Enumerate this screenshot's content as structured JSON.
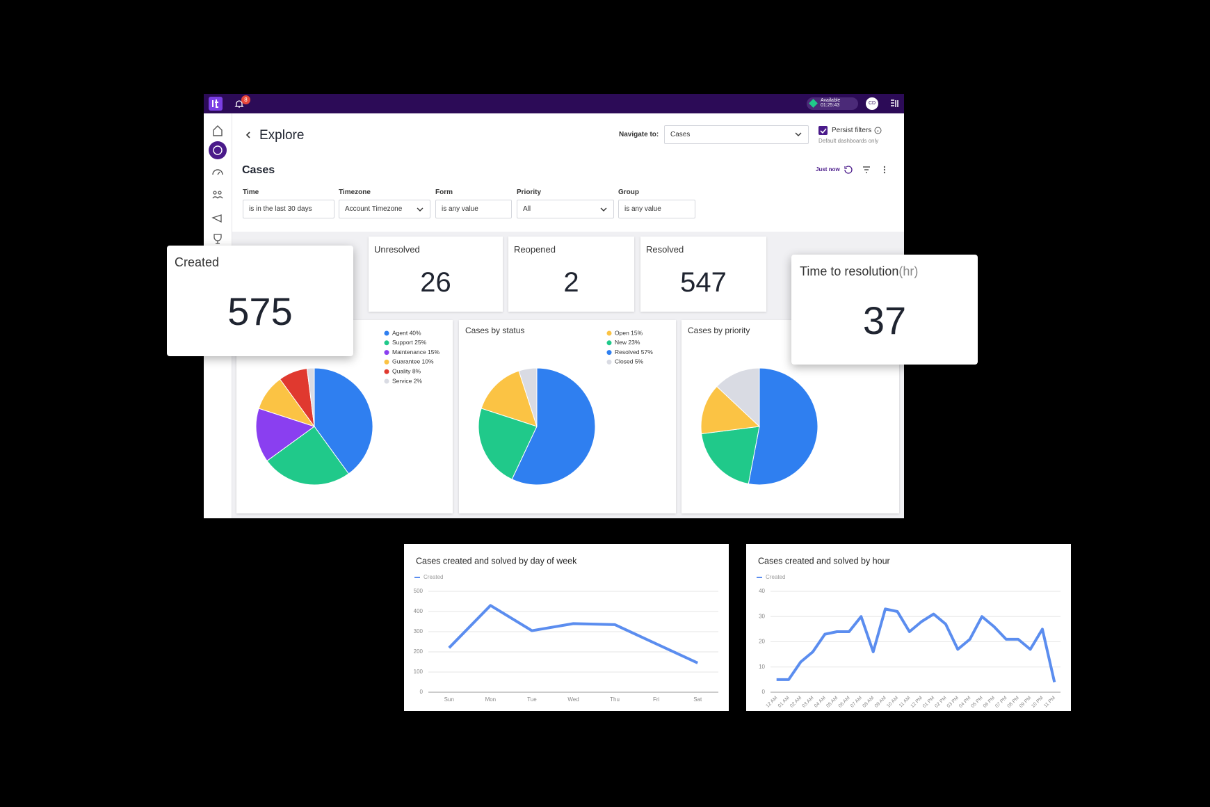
{
  "top_bar": {
    "notification_count": "8",
    "status": "Available",
    "timer": "01:25:43",
    "avatar": "CD"
  },
  "header": {
    "title": "Explore",
    "navigate_label": "Navigate to:",
    "navigate_value": "Cases",
    "persist_label": "Persist filters",
    "persist_note": "Default dashboards only"
  },
  "section": {
    "title": "Cases",
    "refreshed": "Just now"
  },
  "filters": [
    {
      "label": "Time",
      "value": "is in the last 30 days"
    },
    {
      "label": "Timezone",
      "value": "Account Timezone"
    },
    {
      "label": "Form",
      "value": "is any value"
    },
    {
      "label": "Priority",
      "value": "All"
    },
    {
      "label": "Group",
      "value": "is any value"
    }
  ],
  "kpis": [
    {
      "title": "Created",
      "value": 575
    },
    {
      "title": "Unresolved",
      "value": 26
    },
    {
      "title": "Reopened",
      "value": 2
    },
    {
      "title": "Resolved",
      "value": 547
    },
    {
      "title": "Time to resolution",
      "unit": "(hr)",
      "value": 37
    }
  ],
  "pies": [
    {
      "type": "pie",
      "categories": [
        "Agent 40%",
        "Support 25%",
        "Maintenance 15%",
        "Guarantee 10%",
        "Quality 8%",
        "Service 2%"
      ],
      "values": [
        40,
        25,
        15,
        10,
        8,
        2
      ],
      "colors": [
        "#2f7ff0",
        "#20c98a",
        "#8a3ff0",
        "#fbc344",
        "#e0392f",
        "#d9dbe3"
      ]
    },
    {
      "type": "pie",
      "title": "Cases by status",
      "categories": [
        "Open 15%",
        "New 23%",
        "Resolved 57%",
        "Closed 5%"
      ],
      "values": [
        15,
        23,
        57,
        5
      ],
      "colors": [
        "#fbc344",
        "#20c98a",
        "#2f7ff0",
        "#d9dbe3"
      ]
    },
    {
      "type": "pie",
      "title": "Cases by priority",
      "values": [
        53,
        20,
        14,
        13
      ],
      "colors": [
        "#2f7ff0",
        "#20c98a",
        "#fbc344",
        "#d9dbe3"
      ]
    }
  ],
  "line_charts": [
    {
      "type": "line",
      "title": "Cases created and solved by day of week",
      "categories": [
        "Sun",
        "Mon",
        "Tue",
        "Wed",
        "Thu",
        "Fri",
        "Sat"
      ],
      "series": [
        {
          "name": "Created",
          "color": "#5b8def",
          "values": [
            220,
            430,
            305,
            340,
            335,
            240,
            145
          ]
        }
      ],
      "ylim": [
        0,
        500
      ],
      "yticks": [
        0,
        100,
        200,
        300,
        400,
        500
      ],
      "grid": true
    },
    {
      "type": "line",
      "title": "Cases created and solved by hour",
      "categories": [
        "12 AM",
        "01 AM",
        "02 AM",
        "03 AM",
        "04 AM",
        "05 AM",
        "06 AM",
        "07 AM",
        "08 AM",
        "09 AM",
        "10 AM",
        "11 AM",
        "12 PM",
        "01 PM",
        "02 PM",
        "03 PM",
        "04 PM",
        "05 PM",
        "06 PM",
        "07 PM",
        "08 PM",
        "09 PM",
        "10 PM",
        "11 PM"
      ],
      "series": [
        {
          "name": "Created",
          "color": "#5b8def",
          "values": [
            5,
            5,
            12,
            16,
            23,
            24,
            24,
            30,
            16,
            33,
            32,
            24,
            28,
            31,
            27,
            17,
            21,
            30,
            26,
            21,
            21,
            17,
            25,
            4
          ]
        }
      ],
      "ylim": [
        0,
        40
      ],
      "yticks": [
        0,
        10,
        20,
        30,
        40
      ],
      "grid": true
    }
  ]
}
